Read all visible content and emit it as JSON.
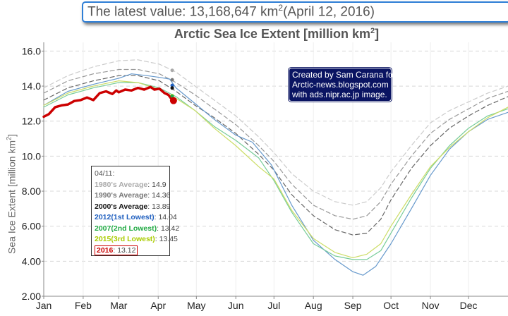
{
  "banner": {
    "prefix": "The latest value: 13,168,647 km",
    "sup": "2",
    "suffix": "(April 12, 2016)"
  },
  "credit": {
    "lines": [
      "Created by Sam Carana for",
      "Arctic-news.blogspot.com",
      "with ads.nipr.ac.jp image."
    ]
  },
  "legend": {
    "date": "04/11:",
    "items": [
      {
        "label": "1980's Average",
        "value": "14.9",
        "color": "#aaaaaa"
      },
      {
        "label": "1990's Average",
        "value": "14.36",
        "color": "#777777"
      },
      {
        "label": "2000's Average",
        "value": "13.89",
        "color": "#111111"
      },
      {
        "label": "2012(1st Lowest)",
        "value": "14.04",
        "color": "#1f5fbf"
      },
      {
        "label": "2007(2nd Lowest)",
        "value": "13.42",
        "color": "#22aa44"
      },
      {
        "label": "2015(3rd Lowest)",
        "value": "13.45",
        "color": "#aacc00"
      },
      {
        "label": "2016",
        "value": "13.12",
        "color": "#cc0000"
      }
    ]
  },
  "chart_data": {
    "type": "line",
    "title": "Arctic Sea Ice Extent [million km",
    "title_sup": "2",
    "title_suffix": "]",
    "ylabel": "Sea Ice Extent [million km",
    "ylabel_sup": "2",
    "ylabel_suffix": "]",
    "ylim": [
      2,
      16.5
    ],
    "xlim": [
      1,
      366
    ],
    "yticks": [
      "2.00",
      "4.00",
      "6.00",
      "8.00",
      "10.0",
      "12.0",
      "14.0",
      "16.0"
    ],
    "ytick_values": [
      2,
      4,
      6,
      8,
      10,
      12,
      14,
      16
    ],
    "months": [
      "Jan",
      "Feb",
      "Mar",
      "Apr",
      "May",
      "Jun",
      "Jul",
      "Aug",
      "Sep",
      "Oct",
      "Nov",
      "Dec"
    ],
    "month_days": [
      1,
      32,
      60,
      91,
      121,
      152,
      182,
      213,
      244,
      274,
      305,
      335
    ],
    "grid": true,
    "latest": {
      "day": 103,
      "value": 13.17
    },
    "series": [
      {
        "name": "1980's Average",
        "color": "#cccccc",
        "width": 1.2,
        "dash": "6,4",
        "points": [
          [
            1,
            13.9
          ],
          [
            20,
            14.6
          ],
          [
            40,
            15.1
          ],
          [
            60,
            15.45
          ],
          [
            75,
            15.5
          ],
          [
            92,
            15.25
          ],
          [
            105,
            14.8
          ],
          [
            120,
            14.0
          ],
          [
            135,
            13.2
          ],
          [
            152,
            12.3
          ],
          [
            170,
            11.1
          ],
          [
            182,
            10.2
          ],
          [
            196,
            9.0
          ],
          [
            213,
            8.0
          ],
          [
            230,
            7.4
          ],
          [
            244,
            7.2
          ],
          [
            255,
            7.4
          ],
          [
            266,
            8.2
          ],
          [
            274,
            9.1
          ],
          [
            290,
            10.6
          ],
          [
            305,
            11.9
          ],
          [
            320,
            12.6
          ],
          [
            335,
            13.1
          ],
          [
            350,
            13.6
          ],
          [
            366,
            14.0
          ]
        ]
      },
      {
        "name": "1990's Average",
        "color": "#999999",
        "width": 1.2,
        "dash": "6,4",
        "points": [
          [
            1,
            13.6
          ],
          [
            20,
            14.3
          ],
          [
            40,
            14.7
          ],
          [
            60,
            14.95
          ],
          [
            75,
            14.95
          ],
          [
            92,
            14.7
          ],
          [
            105,
            14.2
          ],
          [
            120,
            13.5
          ],
          [
            135,
            12.7
          ],
          [
            152,
            11.8
          ],
          [
            170,
            10.6
          ],
          [
            182,
            9.7
          ],
          [
            196,
            8.4
          ],
          [
            213,
            7.2
          ],
          [
            230,
            6.6
          ],
          [
            244,
            6.4
          ],
          [
            255,
            6.6
          ],
          [
            266,
            7.4
          ],
          [
            274,
            8.4
          ],
          [
            290,
            10.0
          ],
          [
            305,
            11.3
          ],
          [
            320,
            12.1
          ],
          [
            335,
            12.7
          ],
          [
            350,
            13.3
          ],
          [
            366,
            13.7
          ]
        ]
      },
      {
        "name": "2000's Average",
        "color": "#666666",
        "width": 1.2,
        "dash": "6,4",
        "points": [
          [
            1,
            13.2
          ],
          [
            20,
            13.9
          ],
          [
            40,
            14.3
          ],
          [
            60,
            14.6
          ],
          [
            75,
            14.6
          ],
          [
            92,
            14.3
          ],
          [
            105,
            13.7
          ],
          [
            120,
            12.9
          ],
          [
            135,
            12.2
          ],
          [
            152,
            11.3
          ],
          [
            170,
            10.1
          ],
          [
            182,
            9.2
          ],
          [
            196,
            7.8
          ],
          [
            213,
            6.6
          ],
          [
            230,
            5.8
          ],
          [
            244,
            5.5
          ],
          [
            255,
            5.6
          ],
          [
            266,
            6.4
          ],
          [
            274,
            7.5
          ],
          [
            290,
            9.3
          ],
          [
            305,
            10.6
          ],
          [
            320,
            11.6
          ],
          [
            335,
            12.3
          ],
          [
            350,
            12.9
          ],
          [
            366,
            13.4
          ]
        ]
      },
      {
        "name": "2012(1st Lowest)",
        "color": "#6699cc",
        "width": 1.2,
        "dash": "",
        "points": [
          [
            1,
            12.9
          ],
          [
            20,
            13.7
          ],
          [
            40,
            14.1
          ],
          [
            60,
            14.45
          ],
          [
            70,
            14.7
          ],
          [
            82,
            14.6
          ],
          [
            92,
            14.5
          ],
          [
            100,
            14.4
          ],
          [
            105,
            13.9
          ],
          [
            120,
            13.0
          ],
          [
            135,
            12.1
          ],
          [
            152,
            11.2
          ],
          [
            165,
            10.8
          ],
          [
            180,
            9.5
          ],
          [
            196,
            7.2
          ],
          [
            213,
            5.2
          ],
          [
            230,
            4.1
          ],
          [
            244,
            3.4
          ],
          [
            252,
            3.2
          ],
          [
            262,
            3.7
          ],
          [
            274,
            5.0
          ],
          [
            290,
            7.0
          ],
          [
            305,
            8.9
          ],
          [
            320,
            10.4
          ],
          [
            335,
            11.4
          ],
          [
            350,
            12.1
          ],
          [
            366,
            12.5
          ]
        ]
      },
      {
        "name": "2007(2nd Lowest)",
        "color": "#77cc99",
        "width": 1.2,
        "dash": "",
        "points": [
          [
            1,
            12.8
          ],
          [
            20,
            13.5
          ],
          [
            40,
            13.9
          ],
          [
            60,
            14.2
          ],
          [
            75,
            14.2
          ],
          [
            92,
            13.9
          ],
          [
            105,
            13.4
          ],
          [
            120,
            12.6
          ],
          [
            135,
            11.7
          ],
          [
            152,
            10.9
          ],
          [
            170,
            9.9
          ],
          [
            182,
            8.6
          ],
          [
            196,
            6.8
          ],
          [
            213,
            5.0
          ],
          [
            230,
            4.3
          ],
          [
            244,
            4.1
          ],
          [
            255,
            4.1
          ],
          [
            266,
            4.6
          ],
          [
            274,
            5.6
          ],
          [
            290,
            7.6
          ],
          [
            305,
            9.3
          ],
          [
            320,
            10.6
          ],
          [
            335,
            11.6
          ],
          [
            350,
            12.3
          ],
          [
            366,
            12.7
          ]
        ]
      },
      {
        "name": "2015(3rd Lowest)",
        "color": "#ccdd66",
        "width": 1.2,
        "dash": "",
        "points": [
          [
            1,
            12.9
          ],
          [
            20,
            13.6
          ],
          [
            40,
            14.0
          ],
          [
            60,
            14.3
          ],
          [
            75,
            14.2
          ],
          [
            92,
            13.8
          ],
          [
            105,
            13.3
          ],
          [
            120,
            12.6
          ],
          [
            135,
            11.6
          ],
          [
            152,
            10.6
          ],
          [
            170,
            9.4
          ],
          [
            182,
            8.7
          ],
          [
            196,
            6.9
          ],
          [
            213,
            5.3
          ],
          [
            230,
            4.5
          ],
          [
            244,
            4.2
          ],
          [
            255,
            4.4
          ],
          [
            266,
            5.0
          ],
          [
            274,
            6.0
          ],
          [
            290,
            7.8
          ],
          [
            305,
            9.4
          ],
          [
            320,
            10.5
          ],
          [
            335,
            11.4
          ],
          [
            350,
            12.2
          ],
          [
            366,
            12.8
          ]
        ]
      },
      {
        "name": "2016",
        "color": "#cc0000",
        "width": 3.5,
        "dash": "",
        "points": [
          [
            1,
            12.25
          ],
          [
            5,
            12.4
          ],
          [
            10,
            12.8
          ],
          [
            15,
            12.9
          ],
          [
            20,
            12.95
          ],
          [
            25,
            13.15
          ],
          [
            30,
            13.2
          ],
          [
            35,
            13.35
          ],
          [
            40,
            13.2
          ],
          [
            45,
            13.6
          ],
          [
            50,
            13.7
          ],
          [
            55,
            13.55
          ],
          [
            58,
            13.75
          ],
          [
            60,
            13.65
          ],
          [
            65,
            13.8
          ],
          [
            70,
            13.75
          ],
          [
            75,
            13.9
          ],
          [
            80,
            13.8
          ],
          [
            85,
            13.95
          ],
          [
            88,
            13.8
          ],
          [
            92,
            13.85
          ],
          [
            96,
            13.6
          ],
          [
            99,
            13.5
          ],
          [
            101,
            13.3
          ],
          [
            103,
            13.17
          ]
        ]
      }
    ],
    "end_markers": [
      {
        "value": 14.9,
        "color": "#aaaaaa"
      },
      {
        "value": 14.36,
        "color": "#777777"
      },
      {
        "value": 14.04,
        "color": "#1f5fbf"
      },
      {
        "value": 13.89,
        "color": "#111111"
      },
      {
        "value": 13.45,
        "color": "#aacc00"
      },
      {
        "value": 13.42,
        "color": "#22aa44"
      }
    ],
    "marker_day": 102
  }
}
